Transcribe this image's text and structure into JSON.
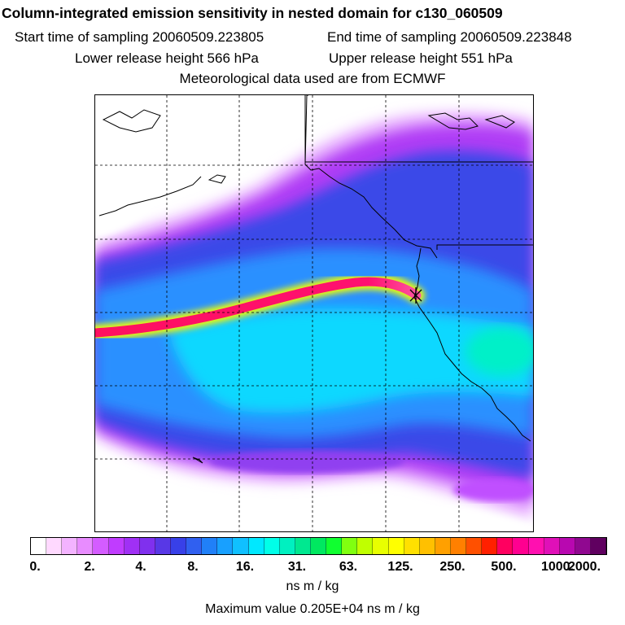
{
  "header": {
    "title": "Column-integrated emission sensitivity in nested domain for c130_060509",
    "start_label": "Start time of sampling 20060509.223805",
    "end_label": "End time of sampling 20060509.223848",
    "lower_label": "Lower release height  566 hPa",
    "upper_label": "Upper release height  551 hPa",
    "met_label": "Meteorological data used are from ECMWF"
  },
  "legend": {
    "tick_labels": [
      "0.",
      "2.",
      "4.",
      "8.",
      "16.",
      "31.",
      "63.",
      "125.",
      "250.",
      "500.",
      "1000.",
      "2000."
    ],
    "unit": "ns m / kg",
    "max_label": "Maximum value  0.205E+04 ns m / kg",
    "colors": [
      "#ffffff",
      "#ffd9ff",
      "#f3b3ff",
      "#e88cff",
      "#d45cff",
      "#c03cff",
      "#a030f5",
      "#8030ee",
      "#5838e6",
      "#3840e8",
      "#3060f0",
      "#2080f8",
      "#18a0ff",
      "#10c0ff",
      "#00e8ff",
      "#00ffe8",
      "#00f0c0",
      "#00e890",
      "#00e860",
      "#10ff30",
      "#80ff10",
      "#c0ff00",
      "#e8ff00",
      "#ffff00",
      "#ffe000",
      "#ffc000",
      "#ffa000",
      "#ff8000",
      "#ff5000",
      "#ff2000",
      "#ff0060",
      "#ff0090",
      "#ff10b0",
      "#e010b8",
      "#b808b0",
      "#900890",
      "#600060"
    ]
  }
}
